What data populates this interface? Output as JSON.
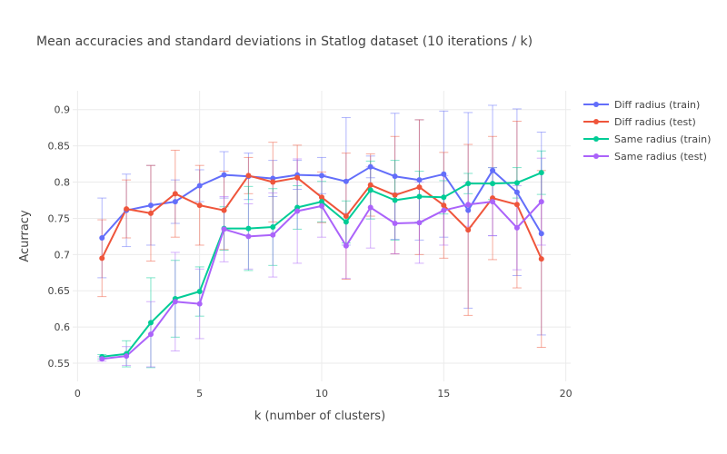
{
  "chart_data": {
    "type": "line",
    "title": "Mean accuracies and standard deviations in Statlog dataset (10 iterations / k)",
    "xlabel": "k (number of clusters)",
    "ylabel": "Acurracy",
    "xlim": [
      -0.2,
      20.2
    ],
    "ylim": [
      0.525,
      0.926
    ],
    "x_ticks": [
      0,
      5,
      10,
      15,
      20
    ],
    "y_ticks": [
      0.55,
      0.6,
      0.65,
      0.7,
      0.75,
      0.8,
      0.85,
      0.9
    ],
    "x_tick_labels": [
      "0",
      "5",
      "10",
      "15",
      "20"
    ],
    "y_tick_labels": [
      "0.55",
      "0.6",
      "0.65",
      "0.7",
      "0.75",
      "0.8",
      "0.85",
      "0.9"
    ],
    "grid": true,
    "legend_position": "top-right",
    "x": [
      1,
      2,
      3,
      4,
      5,
      6,
      7,
      8,
      9,
      10,
      11,
      12,
      13,
      14,
      15,
      16,
      17,
      18,
      19
    ],
    "series": [
      {
        "name": "Diff radius (train)",
        "color": "#636efa",
        "values": [
          0.723,
          0.761,
          0.768,
          0.773,
          0.795,
          0.81,
          0.808,
          0.805,
          0.81,
          0.809,
          0.801,
          0.821,
          0.808,
          0.803,
          0.811,
          0.761,
          0.816,
          0.786,
          0.729
        ],
        "errors": [
          0.055,
          0.05,
          0.055,
          0.03,
          0.022,
          0.032,
          0.032,
          0.025,
          0.02,
          0.025,
          0.088,
          0.015,
          0.087,
          0.083,
          0.087,
          0.135,
          0.09,
          0.115,
          0.14
        ]
      },
      {
        "name": "Diff radius (test)",
        "color": "#ef553b",
        "values": [
          0.695,
          0.763,
          0.757,
          0.784,
          0.768,
          0.761,
          0.809,
          0.8,
          0.806,
          0.779,
          0.753,
          0.796,
          0.782,
          0.793,
          0.768,
          0.734,
          0.778,
          0.769,
          0.694
        ],
        "errors": [
          0.053,
          0.04,
          0.066,
          0.06,
          0.055,
          0.054,
          0.025,
          0.055,
          0.045,
          0.035,
          0.087,
          0.043,
          0.081,
          0.093,
          0.073,
          0.118,
          0.085,
          0.115,
          0.122
        ]
      },
      {
        "name": "Same radius (train)",
        "color": "#00cc96",
        "values": [
          0.559,
          0.563,
          0.606,
          0.639,
          0.649,
          0.736,
          0.736,
          0.738,
          0.765,
          0.773,
          0.745,
          0.789,
          0.775,
          0.78,
          0.779,
          0.798,
          0.798,
          0.799,
          0.813
        ],
        "errors": [
          0.003,
          0.018,
          0.062,
          0.053,
          0.034,
          0.03,
          0.058,
          0.053,
          0.03,
          0.028,
          0.029,
          0.04,
          0.055,
          0.035,
          0.023,
          0.014,
          0.022,
          0.021,
          0.03
        ]
      },
      {
        "name": "Same radius (test)",
        "color": "#ab63fa",
        "values": [
          0.556,
          0.56,
          0.59,
          0.635,
          0.632,
          0.735,
          0.725,
          0.727,
          0.76,
          0.767,
          0.712,
          0.765,
          0.743,
          0.744,
          0.761,
          0.769,
          0.773,
          0.737,
          0.773
        ],
        "errors": [
          0.003,
          0.013,
          0.045,
          0.068,
          0.048,
          0.045,
          0.045,
          0.058,
          0.072,
          0.043,
          0.045,
          0.056,
          0.042,
          0.056,
          0.048,
          0.03,
          0.047,
          0.058,
          0.06
        ]
      }
    ]
  }
}
